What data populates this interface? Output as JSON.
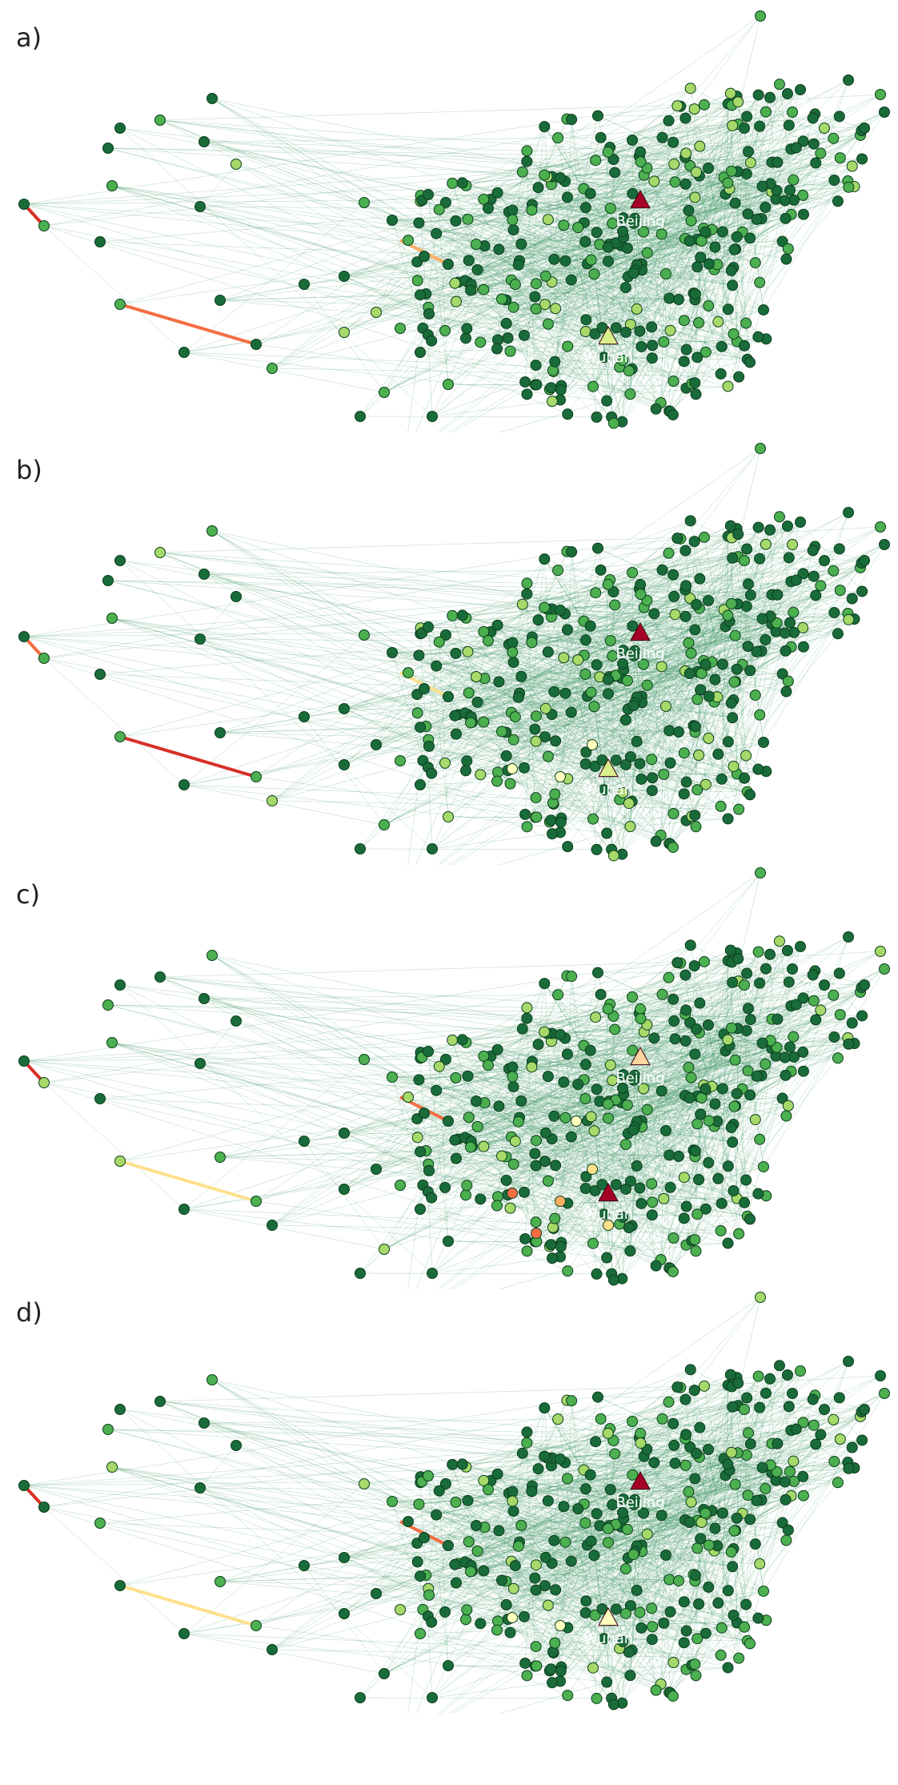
{
  "figure": {
    "panels": [
      {
        "label": "a)",
        "beijing_color": "#a50026",
        "wuhan_color": "#d9ef8b",
        "highlight_edges": [
          [
            "#d73027",
            0
          ],
          [
            "#f46d43",
            1
          ],
          [
            "#fdae61",
            2
          ]
        ],
        "hot_nodes": []
      },
      {
        "label": "b)",
        "beijing_color": "#a50026",
        "wuhan_color": "#d9ef8b",
        "highlight_edges": [
          [
            "#f46d43",
            0
          ],
          [
            "#d73027",
            1
          ],
          [
            "#fee08b",
            2
          ]
        ],
        "hot_nodes": [
          [
            "#ffffbf",
            0
          ],
          [
            "#ffffbf",
            1
          ],
          [
            "#ffffbf",
            2
          ]
        ]
      },
      {
        "label": "c)",
        "beijing_color": "#fdd49e",
        "wuhan_color": "#a50026",
        "highlight_edges": [
          [
            "#d73027",
            0
          ],
          [
            "#fee08b",
            1
          ],
          [
            "#f46d43",
            2
          ]
        ],
        "hot_nodes": [
          [
            "#f46d43",
            0
          ],
          [
            "#fdae61",
            1
          ],
          [
            "#fee08b",
            2
          ],
          [
            "#f46d43",
            3
          ],
          [
            "#fee08b",
            4
          ],
          [
            "#ffffbf",
            5
          ]
        ]
      },
      {
        "label": "d)",
        "beijing_color": "#a50026",
        "wuhan_color": "#ffffbf",
        "highlight_edges": [
          [
            "#d73027",
            0
          ],
          [
            "#fee08b",
            1
          ],
          [
            "#f46d43",
            2
          ]
        ],
        "hot_nodes": [
          [
            "#ffffbf",
            0
          ],
          [
            "#ffffbf",
            1
          ]
        ]
      }
    ],
    "cities": {
      "beijing": "Beijing",
      "wuhan": "Wuhan"
    },
    "colors": {
      "edge": "#2e8b57",
      "node_dark": "#1a6b3a",
      "node_mid": "#4caf50",
      "node_light": "#a6d96a",
      "node_stroke": "#0b3d1c"
    }
  }
}
